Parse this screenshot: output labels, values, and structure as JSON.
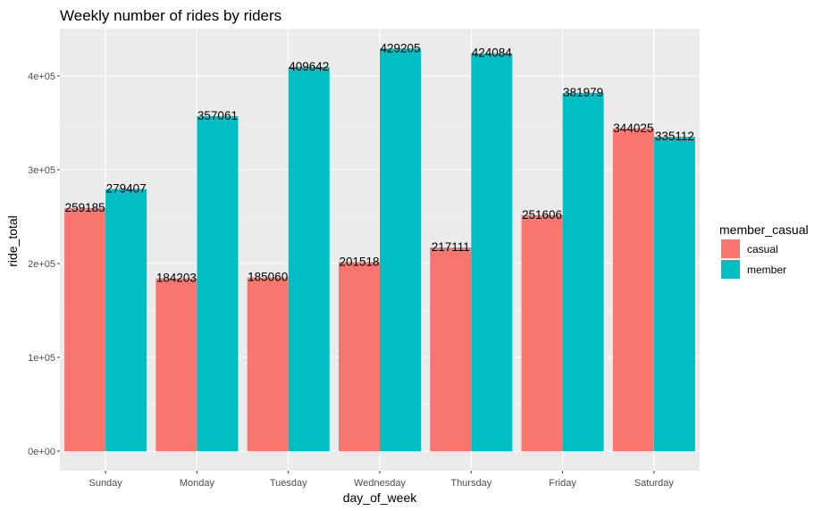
{
  "chart_data": {
    "type": "bar",
    "title": "Weekly number of rides by riders",
    "xlabel": "day_of_week",
    "ylabel": "ride_total",
    "categories": [
      "Sunday",
      "Monday",
      "Tuesday",
      "Wednesday",
      "Thursday",
      "Friday",
      "Saturday"
    ],
    "series": [
      {
        "name": "casual",
        "color": "#F8766D",
        "values": [
          259185,
          184203,
          185060,
          201518,
          217111,
          251606,
          344025
        ]
      },
      {
        "name": "member",
        "color": "#00BFC4",
        "values": [
          279407,
          357061,
          409642,
          429205,
          424084,
          381979,
          335112
        ]
      }
    ],
    "ylim": [
      0,
      450000
    ],
    "yticks": [
      0,
      100000,
      200000,
      300000,
      400000
    ],
    "ytick_labels": [
      "0e+00",
      "1e+05",
      "2e+05",
      "3e+05",
      "4e+05"
    ],
    "legend": {
      "title": "member_casual",
      "position": "right"
    },
    "grid": true,
    "panel_background": "#EBEBEB"
  }
}
